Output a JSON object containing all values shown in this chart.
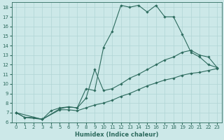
{
  "xlabel": "Humidex (Indice chaleur)",
  "xlim": [
    -0.5,
    23.5
  ],
  "ylim": [
    6,
    18.5
  ],
  "xticks": [
    0,
    1,
    2,
    3,
    4,
    5,
    6,
    7,
    8,
    9,
    10,
    11,
    12,
    13,
    14,
    15,
    16,
    17,
    18,
    19,
    20,
    21,
    22,
    23
  ],
  "yticks": [
    6,
    7,
    8,
    9,
    10,
    11,
    12,
    13,
    14,
    15,
    16,
    17,
    18
  ],
  "bg_color": "#cce8e8",
  "line_color": "#2d6b5e",
  "grid_color": "#b0d4d4",
  "line1_x": [
    0,
    1,
    2,
    3,
    4,
    5,
    6,
    7,
    8,
    9,
    10,
    11,
    12,
    13,
    14,
    15,
    16,
    17,
    18,
    19,
    20,
    21,
    22,
    23
  ],
  "line1_y": [
    7.0,
    6.5,
    6.5,
    6.3,
    7.2,
    7.5,
    7.6,
    7.5,
    9.5,
    9.3,
    13.8,
    15.5,
    18.2,
    18.0,
    18.2,
    17.5,
    18.2,
    17.0,
    17.0,
    15.2,
    13.3,
    12.8,
    12.0,
    11.7
  ],
  "line2_x": [
    0,
    1,
    3,
    5,
    6,
    7,
    8,
    9,
    10,
    11,
    12,
    13,
    14,
    15,
    16,
    17,
    18,
    19,
    20,
    21,
    22,
    23
  ],
  "line2_y": [
    7.0,
    6.5,
    6.3,
    7.4,
    7.6,
    7.5,
    8.5,
    11.5,
    9.3,
    9.5,
    10.0,
    10.6,
    11.0,
    11.5,
    12.0,
    12.5,
    12.8,
    13.3,
    13.5,
    13.0,
    12.8,
    11.7
  ],
  "line3_x": [
    0,
    3,
    5,
    6,
    7,
    8,
    9,
    10,
    11,
    12,
    13,
    14,
    15,
    16,
    17,
    18,
    19,
    20,
    21,
    22,
    23
  ],
  "line3_y": [
    7.0,
    6.3,
    7.3,
    7.3,
    7.2,
    7.5,
    7.8,
    8.0,
    8.3,
    8.7,
    9.0,
    9.4,
    9.8,
    10.1,
    10.4,
    10.6,
    10.9,
    11.1,
    11.2,
    11.4,
    11.6
  ]
}
